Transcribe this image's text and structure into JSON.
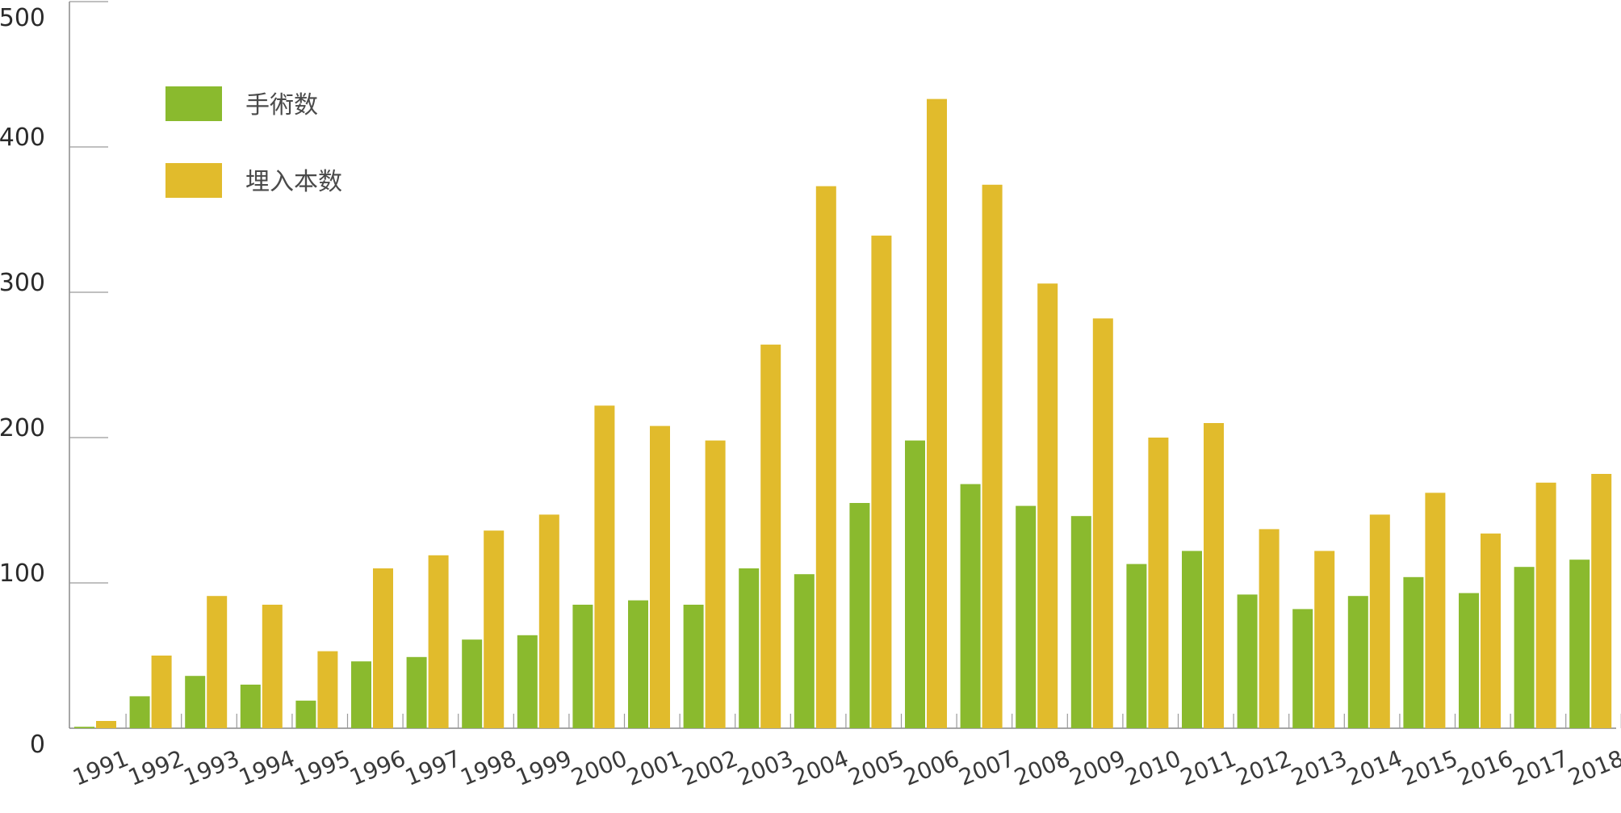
{
  "chart_data": {
    "type": "bar",
    "categories": [
      "1991",
      "1992",
      "1993",
      "1994",
      "1995",
      "1996",
      "1997",
      "1998",
      "1999",
      "2000",
      "2001",
      "2002",
      "2003",
      "2004",
      "2005",
      "2006",
      "2007",
      "2008",
      "2009",
      "2010",
      "2011",
      "2012",
      "2013",
      "2014",
      "2015",
      "2016",
      "2017",
      "2018"
    ],
    "series": [
      {
        "name": "手術数",
        "color": "#8aba2e",
        "values": [
          1,
          22,
          36,
          30,
          19,
          46,
          49,
          61,
          64,
          85,
          88,
          85,
          110,
          106,
          155,
          198,
          168,
          153,
          146,
          113,
          122,
          92,
          82,
          91,
          104,
          93,
          111,
          116
        ]
      },
      {
        "name": "埋入本数",
        "color": "#e1bb2c",
        "values": [
          5,
          50,
          91,
          85,
          53,
          110,
          119,
          136,
          147,
          222,
          208,
          198,
          264,
          373,
          339,
          433,
          374,
          306,
          282,
          200,
          210,
          137,
          122,
          147,
          162,
          134,
          169,
          175
        ]
      }
    ],
    "ylim": [
      0,
      500
    ],
    "yticks": [
      "0",
      "100",
      "200",
      "300",
      "400",
      "500"
    ],
    "legend_position": "top-left",
    "grid": false
  }
}
